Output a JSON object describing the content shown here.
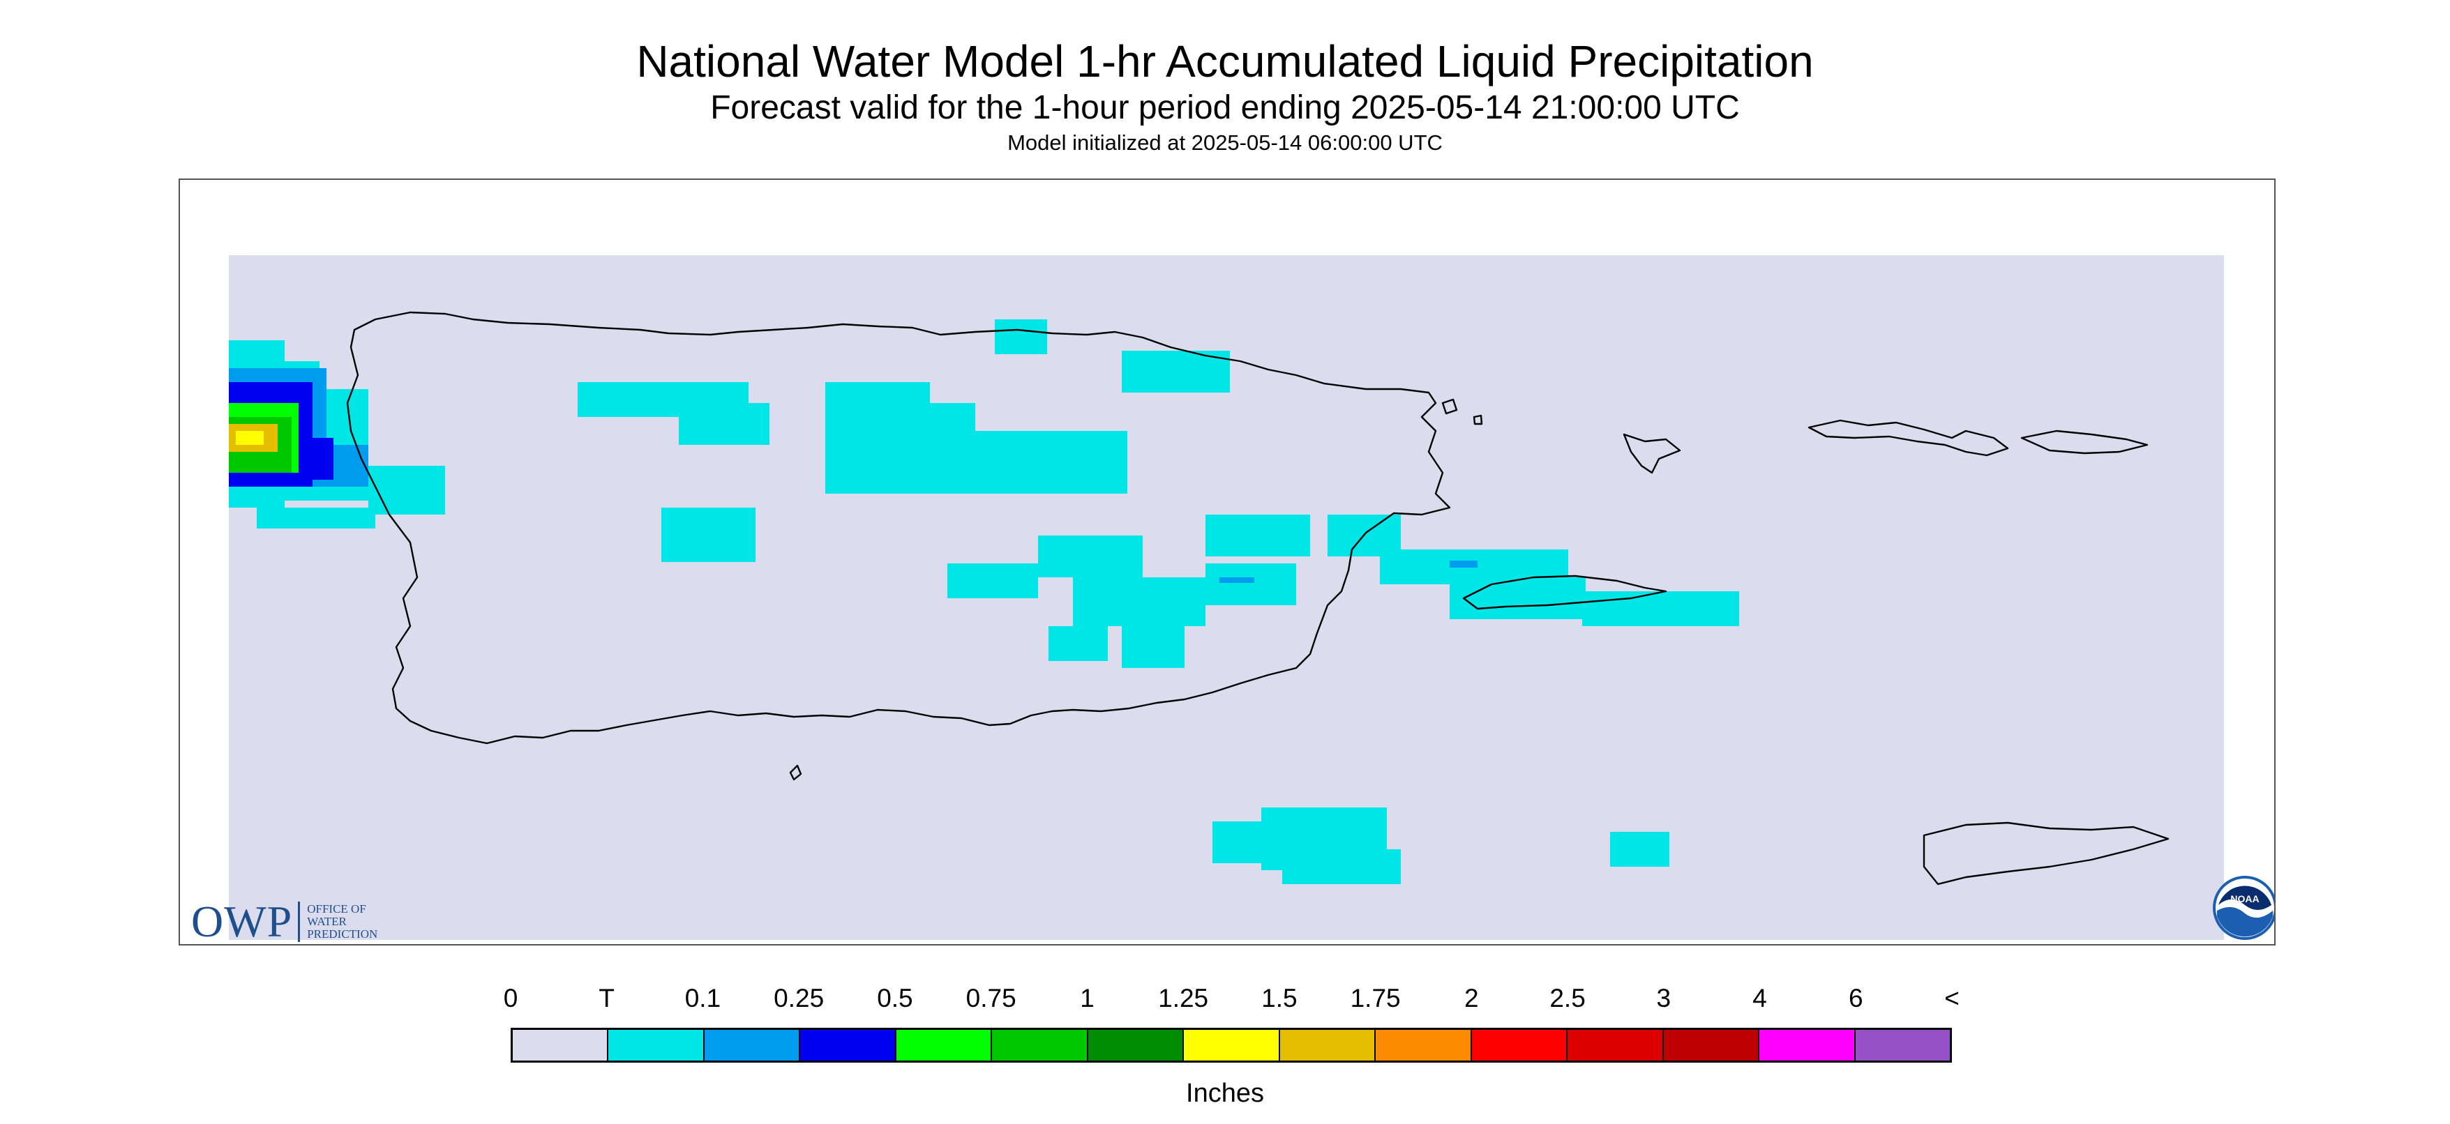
{
  "header": {
    "title": "National Water Model 1-hr Accumulated Liquid Precipitation",
    "subtitle": "Forecast valid for the 1-hour period ending 2025-05-14 21:00:00 UTC",
    "init_line": "Model initialized at 2025-05-14 06:00:00 UTC"
  },
  "map": {
    "region": "Puerto Rico and U.S. Virgin Islands",
    "background_color": "#dcdcef",
    "outline_color": "#000000"
  },
  "logos": {
    "owp": {
      "big": "OWP",
      "line1": "OFFICE OF",
      "line2": "WATER",
      "line3": "PREDICTION"
    },
    "noaa": {
      "text": "NOAA"
    }
  },
  "legend": {
    "labels": [
      "0",
      "T",
      "0.1",
      "0.25",
      "0.5",
      "0.75",
      "1",
      "1.25",
      "1.5",
      "1.75",
      "2",
      "2.5",
      "3",
      "4",
      "6",
      "<"
    ],
    "colors": [
      "#dcdcef",
      "#00e5e5",
      "#009cf0",
      "#0000f0",
      "#00ff00",
      "#00c800",
      "#008c00",
      "#ffff00",
      "#e6be00",
      "#ff8c00",
      "#ff0000",
      "#dc0000",
      "#be0000",
      "#ff00ff",
      "#9650c8"
    ],
    "units": "Inches"
  }
}
